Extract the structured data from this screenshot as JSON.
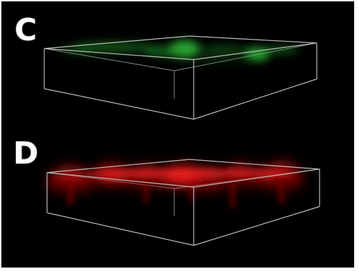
{
  "figure": {
    "panels": [
      {
        "id": "C",
        "label": "C",
        "channel": "green",
        "color": "#2fbf3a"
      },
      {
        "id": "D",
        "label": "D",
        "channel": "red",
        "color": "#ff1a1a"
      }
    ],
    "background_color": "#000000",
    "edge_color": "#bdbdbd"
  }
}
